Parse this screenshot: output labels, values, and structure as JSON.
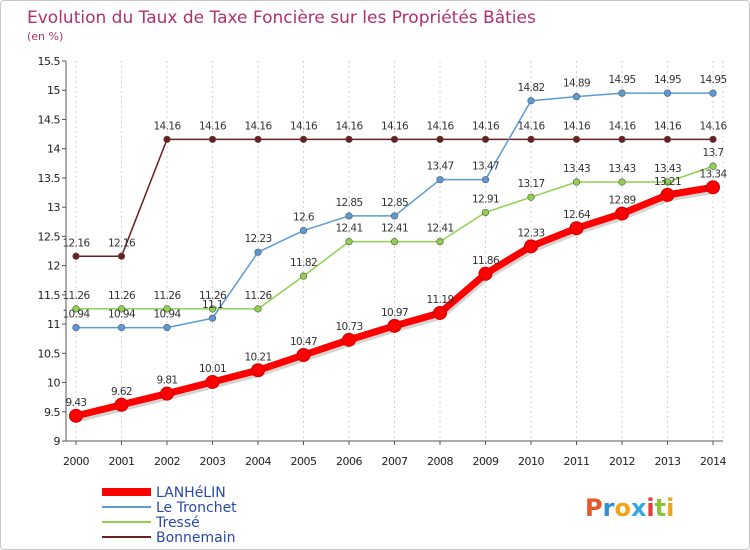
{
  "header": {
    "title": "Evolution du Taux de Taxe Foncière sur les Propriétés Bâties",
    "unit": "(en %)"
  },
  "logo": {
    "letters": [
      "P",
      "r",
      "o",
      "x",
      "i",
      "t",
      "i"
    ],
    "colors": [
      "#e8572a",
      "#2f8fd6",
      "#f2a21b",
      "#3aa8e0",
      "#e33a3a",
      "#8cc43c",
      "#f2a21b"
    ]
  },
  "chart_data": {
    "type": "line",
    "title": "Evolution du Taux de Taxe Foncière sur les Propriétés Bâties",
    "ylabel": "(en %)",
    "xlabel": "",
    "x": [
      "2000",
      "2001",
      "2002",
      "2003",
      "2004",
      "2005",
      "2006",
      "2007",
      "2008",
      "2009",
      "2010",
      "2011",
      "2012",
      "2013",
      "2014"
    ],
    "ylim": [
      9,
      15.5
    ],
    "yticks": [
      "9",
      "9.5",
      "10",
      "10.5",
      "11",
      "11.5",
      "12",
      "12.5",
      "13",
      "13.5",
      "14",
      "14.5",
      "15",
      "15.5"
    ],
    "ytick_values": [
      9,
      9.5,
      10,
      10.5,
      11,
      11.5,
      12,
      12.5,
      13,
      13.5,
      14,
      14.5,
      15,
      15.5
    ],
    "grid": "vertical-dashed",
    "legend_position": "bottom-left",
    "series": [
      {
        "name": "Bonnemain",
        "color": "#6b1f1f",
        "values": [
          12.16,
          12.16,
          14.16,
          14.16,
          14.16,
          14.16,
          14.16,
          14.16,
          14.16,
          14.16,
          14.16,
          14.16,
          14.16,
          14.16,
          14.16
        ],
        "labels": [
          "12.16",
          "12.16",
          "14.16",
          "14.16",
          "14.16",
          "14.16",
          "14.16",
          "14.16",
          "14.16",
          "14.16",
          "14.16",
          "14.16",
          "14.16",
          "14.16",
          "14.16"
        ]
      },
      {
        "name": "Le Tronchet",
        "color": "#5b9bd5",
        "values": [
          10.94,
          10.94,
          10.94,
          11.1,
          12.23,
          12.6,
          12.85,
          12.85,
          13.47,
          13.47,
          14.82,
          14.89,
          14.95,
          14.95,
          14.95
        ],
        "labels": [
          "10.94",
          "10.94",
          "10.94",
          "11.1",
          "12.23",
          "12.6",
          "12.85",
          "12.85",
          "13.47",
          "13.47",
          "14.82",
          "14.89",
          "14.95",
          "14.95",
          "14.95"
        ]
      },
      {
        "name": "Tressé",
        "color": "#8fd14f",
        "values": [
          11.26,
          11.26,
          11.26,
          11.26,
          11.26,
          11.82,
          12.41,
          12.41,
          12.41,
          12.91,
          13.17,
          13.43,
          13.43,
          13.43,
          13.7
        ],
        "labels": [
          "11.26",
          "11.26",
          "11.26",
          "11.26",
          "11.26",
          "11.82",
          "12.41",
          "12.41",
          "12.41",
          "12.91",
          "13.17",
          "13.43",
          "13.43",
          "13.43",
          "13.7"
        ]
      },
      {
        "name": "LANHéLIN",
        "color": "#ff0000",
        "values": [
          9.43,
          9.62,
          9.81,
          10.01,
          10.21,
          10.47,
          10.73,
          10.97,
          11.19,
          11.86,
          12.33,
          12.64,
          12.89,
          13.21,
          13.34
        ],
        "labels": [
          "9.43",
          "9.62",
          "9.81",
          "10.01",
          "10.21",
          "10.47",
          "10.73",
          "10.97",
          "11.19",
          "11.86",
          "12.33",
          "12.64",
          "12.89",
          "13.21",
          "13.34"
        ]
      }
    ],
    "legend_order": [
      "LANHéLIN",
      "Le Tronchet",
      "Tressé",
      "Bonnemain"
    ]
  }
}
